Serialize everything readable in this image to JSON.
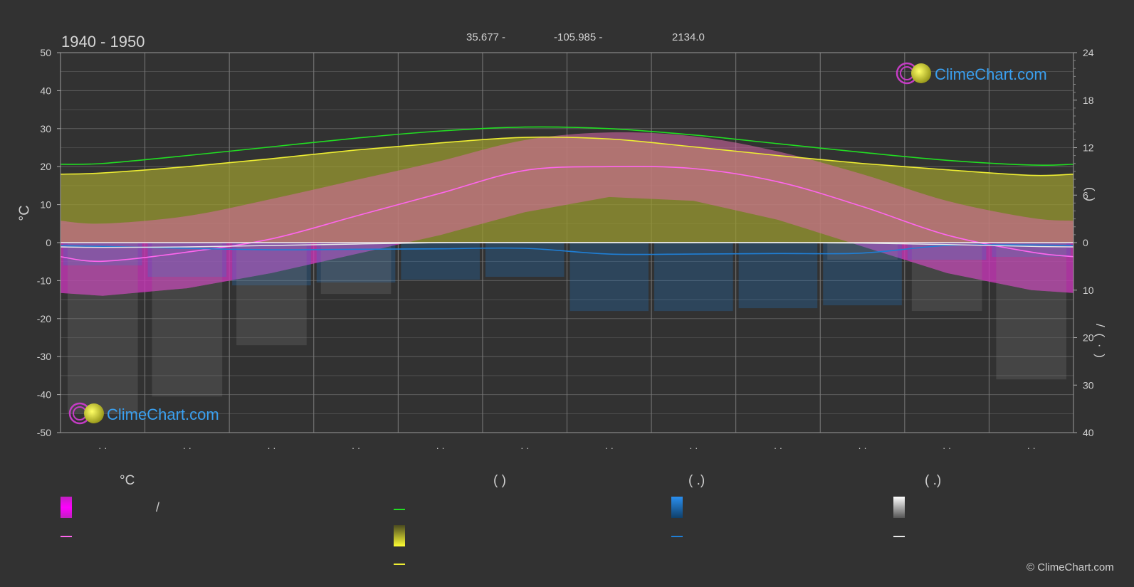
{
  "header": {
    "period": "1940 - 1950",
    "lat": "35.677 -",
    "lon": "-105.985 -",
    "elev": "2134.0"
  },
  "colors": {
    "background": "#323232",
    "daylight": "#22dd22",
    "sunshine": "#eeee33",
    "sunshine_band": "#9a9a30",
    "temp_band": "#d96aa8",
    "temp_mean": "#ff66ee",
    "rain": "#1f7fd6",
    "snow": "#e8e8e8",
    "frost_band": "#c020c0",
    "grid": "#6a6a6a",
    "brand_blue": "#3aa0f0"
  },
  "chart_data": {
    "type": "area",
    "title": "",
    "x_categories": [
      "· ·",
      "· ·",
      "· ·",
      "· ·",
      "· ·",
      "· ·",
      "· ·",
      "· ·",
      "· ·",
      "· ·",
      "· ·",
      "· ·"
    ],
    "y_left": {
      "label": "°C",
      "range": [
        -50,
        50
      ],
      "ticks": [
        50,
        40,
        30,
        20,
        10,
        0,
        -10,
        -20,
        -30,
        -40,
        -50
      ]
    },
    "y_right_top": {
      "range": [
        0,
        24
      ],
      "ticks": [
        24,
        18,
        12,
        6,
        0
      ],
      "label": "(  )"
    },
    "y_right_bottom": {
      "range": [
        0,
        40
      ],
      "ticks": [
        0,
        10,
        20,
        30,
        40
      ],
      "label": "/  ( · )"
    },
    "grid": true,
    "series": [
      {
        "key": "daylight_hours",
        "values": [
          10.0,
          11.0,
          12.1,
          13.2,
          14.1,
          14.6,
          14.4,
          13.6,
          12.5,
          11.4,
          10.4,
          9.8
        ]
      },
      {
        "key": "sunshine_hours",
        "values": [
          8.8,
          9.6,
          10.6,
          11.7,
          12.6,
          13.3,
          13.1,
          12.1,
          11.0,
          10.0,
          9.2,
          8.5
        ]
      },
      {
        "key": "temp_max_mean",
        "values": [
          5.0,
          7.0,
          11.5,
          16.5,
          21.5,
          27.0,
          29.0,
          28.0,
          24.0,
          18.0,
          11.0,
          6.5
        ]
      },
      {
        "key": "temp_mean",
        "values": [
          -4.9,
          -2.5,
          1.0,
          7.0,
          13.0,
          19.0,
          20.0,
          19.5,
          16.0,
          9.5,
          2.0,
          -2.5
        ]
      },
      {
        "key": "temp_min_mean",
        "values": [
          -14.0,
          -12.0,
          -8.0,
          -3.0,
          2.0,
          8.0,
          12.0,
          11.0,
          6.0,
          -1.0,
          -8.0,
          -12.5
        ]
      },
      {
        "key": "rain_mm",
        "values": [
          0.8,
          1.2,
          1.5,
          1.4,
          1.3,
          1.2,
          2.4,
          2.4,
          2.3,
          2.2,
          0.6,
          0.5
        ]
      },
      {
        "key": "snow_mm",
        "values": [
          1.0,
          0.9,
          0.6,
          0.3,
          0.0,
          0.0,
          0.0,
          0.0,
          0.0,
          0.1,
          0.4,
          0.8
        ]
      }
    ]
  },
  "legend": {
    "group1": {
      "title": "°C",
      "item1": "/"
    },
    "group2": {
      "title": "(           )"
    },
    "group3": {
      "title": "(   .)"
    },
    "group4": {
      "title": "(   .)"
    }
  },
  "brand": {
    "name": "ClimeChart.com",
    "copyright": "© ClimeChart.com"
  }
}
